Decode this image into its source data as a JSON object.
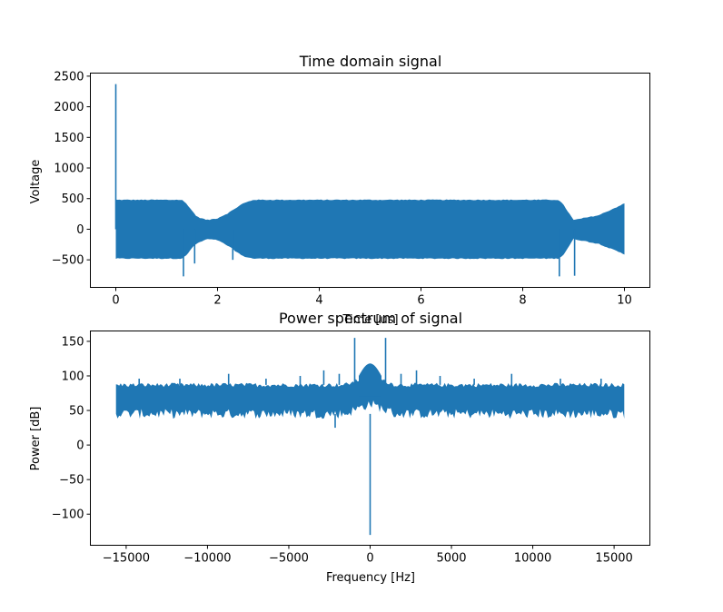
{
  "chart_data": [
    {
      "type": "line",
      "title": "Time domain signal",
      "xlabel": "Time [us]",
      "ylabel": "Voltage",
      "xlim": [
        -0.5,
        10.5
      ],
      "ylim": [
        -950,
        2550
      ],
      "xticks": [
        0,
        2,
        4,
        6,
        8,
        10
      ],
      "yticks": [
        -500,
        0,
        500,
        1000,
        1500,
        2000,
        2500
      ],
      "grid": false,
      "series": [
        {
          "color": "#1f77b4",
          "envelope": {
            "x": [
              0.0,
              0.02,
              1.3,
              1.4,
              1.5,
              1.6,
              1.8,
              2.0,
              2.2,
              2.5,
              2.7,
              8.7,
              8.8,
              9.0,
              9.5,
              10.0
            ],
            "upper": [
              480,
              480,
              480,
              410,
              300,
              200,
              150,
              180,
              260,
              420,
              480,
              480,
              400,
              150,
              230,
              420
            ],
            "lower": [
              -480,
              -480,
              -480,
              -420,
              -300,
              -230,
              -160,
              -180,
              -270,
              -440,
              -480,
              -480,
              -420,
              -160,
              -240,
              -410
            ]
          },
          "spikes": [
            {
              "x": 0.0,
              "y": 2370
            },
            {
              "x": 1.33,
              "y": -770
            },
            {
              "x": 1.55,
              "y": -560
            },
            {
              "x": 2.3,
              "y": -500
            },
            {
              "x": 8.72,
              "y": -770
            },
            {
              "x": 9.02,
              "y": -760
            }
          ]
        }
      ]
    },
    {
      "type": "line",
      "title": "Power spectrum of signal",
      "xlabel": "Frequency [Hz]",
      "ylabel": "Power [dB]",
      "xlim": [
        -17200,
        17200
      ],
      "ylim": [
        -145,
        165
      ],
      "xticks": [
        -15000,
        -10000,
        -5000,
        0,
        5000,
        10000,
        15000
      ],
      "xtick_labels": [
        "−15000",
        "−10000",
        "−5000",
        "0",
        "5000",
        "10000",
        "15000"
      ],
      "yticks": [
        -100,
        -50,
        0,
        50,
        100,
        150
      ],
      "ytick_labels": [
        "−100",
        "−50",
        "0",
        "50",
        "100",
        "150"
      ],
      "grid": false,
      "series": [
        {
          "color": "#1f77b4",
          "band": {
            "x_start": -15625,
            "x_end": 15625,
            "upper": 87,
            "lower": 45
          },
          "hump": {
            "x_start": -700,
            "x_end": 700,
            "peak": 118,
            "center_upper": 100,
            "center_lower": 70
          },
          "spikes": [
            {
              "x": -950,
              "y": 155
            },
            {
              "x": 950,
              "y": 155
            },
            {
              "x": -2850,
              "y": 108
            },
            {
              "x": 2850,
              "y": 108
            },
            {
              "x": -1900,
              "y": 103
            },
            {
              "x": 1900,
              "y": 103
            },
            {
              "x": 0,
              "y": -130
            },
            {
              "x": -2150,
              "y": 25
            },
            {
              "x": -8700,
              "y": 103
            },
            {
              "x": 8700,
              "y": 103
            },
            {
              "x": -14200,
              "y": 96
            },
            {
              "x": 14200,
              "y": 96
            },
            {
              "x": -11700,
              "y": 96
            },
            {
              "x": 11700,
              "y": 96
            },
            {
              "x": -6400,
              "y": 96
            },
            {
              "x": 6400,
              "y": 96
            },
            {
              "x": -4300,
              "y": 100
            },
            {
              "x": 4300,
              "y": 100
            }
          ]
        }
      ]
    }
  ]
}
